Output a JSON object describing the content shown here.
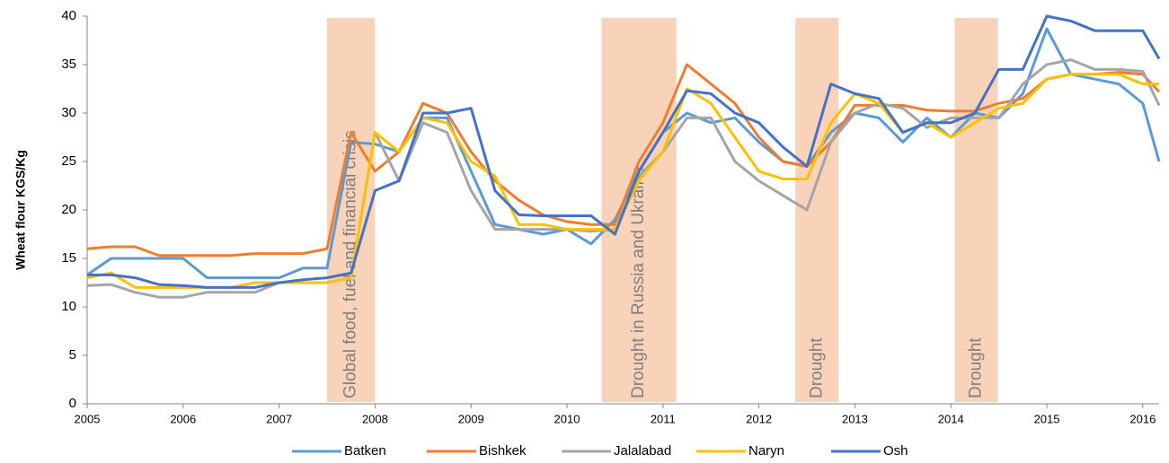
{
  "chart_data": {
    "type": "line",
    "y_label": "Wheat flour KGS/Kg",
    "x": [
      2005,
      2005.25,
      2005.5,
      2005.75,
      2006,
      2006.25,
      2006.5,
      2006.75,
      2007,
      2007.25,
      2007.5,
      2007.75,
      2008,
      2008.25,
      2008.5,
      2008.75,
      2009,
      2009.25,
      2009.5,
      2009.75,
      2010,
      2010.25,
      2010.5,
      2010.75,
      2011,
      2011.25,
      2011.5,
      2011.75,
      2012,
      2012.25,
      2012.5,
      2012.75,
      2013,
      2013.25,
      2013.5,
      2013.75,
      2014,
      2014.25,
      2014.5,
      2014.75,
      2015,
      2015.25,
      2015.5,
      2015.75,
      2016,
      2016.17
    ],
    "series": [
      {
        "name": "Batken",
        "color": "#5b9bd5",
        "values": [
          13.3,
          15,
          15,
          15,
          15,
          13,
          13,
          13,
          13,
          14,
          14,
          27,
          26.8,
          26,
          29.5,
          29.5,
          24,
          18.5,
          18,
          17.5,
          18,
          16.5,
          19,
          24,
          28,
          30,
          29,
          29.5,
          27,
          25,
          24.5,
          28,
          30,
          29.5,
          27,
          29.5,
          27.5,
          30,
          29.5,
          32,
          38.7,
          34,
          33.5,
          33,
          31,
          25
        ]
      },
      {
        "name": "Bishkek",
        "color": "#ed7d31",
        "values": [
          16,
          16.2,
          16.2,
          15.3,
          15.3,
          15.3,
          15.3,
          15.5,
          15.5,
          15.5,
          16,
          28,
          24,
          26,
          31,
          30,
          26,
          23,
          21,
          19.5,
          18.8,
          18.5,
          18.5,
          25,
          29,
          35,
          33,
          31,
          27.5,
          25,
          24.5,
          27,
          30.8,
          30.8,
          30.8,
          30.3,
          30.2,
          30.2,
          31,
          31.5,
          33.5,
          34,
          34,
          34.2,
          34,
          32.2
        ]
      },
      {
        "name": "Jalalabad",
        "color": "#a5a5a5",
        "values": [
          12.2,
          12.3,
          11.5,
          11,
          11,
          11.5,
          11.5,
          11.5,
          12.5,
          12.5,
          12.5,
          13,
          28,
          23,
          29,
          28,
          22,
          18,
          18,
          18,
          18,
          17.8,
          18,
          23.5,
          26,
          29.5,
          29.5,
          25,
          23,
          21.5,
          20,
          27,
          30,
          31,
          30.5,
          28.5,
          29.5,
          29.5,
          29.5,
          33,
          35,
          35.5,
          34.5,
          34.5,
          34.3,
          30.8
        ]
      },
      {
        "name": "Naryn",
        "color": "#ffc000",
        "values": [
          13,
          13.5,
          12,
          12,
          12,
          12,
          12,
          12.5,
          12.5,
          12.5,
          12.5,
          13,
          28,
          26,
          29.5,
          29,
          25,
          23.5,
          18.5,
          18.5,
          18,
          18,
          18,
          23,
          26,
          32.5,
          31,
          27.5,
          24,
          23.2,
          23.2,
          29,
          32,
          31,
          28,
          29,
          27.5,
          29,
          30.5,
          31,
          33.5,
          34,
          34,
          34,
          33,
          33
        ]
      },
      {
        "name": "Osh",
        "color": "#4472c4",
        "values": [
          13.3,
          13.3,
          13,
          12.3,
          12.2,
          12,
          12,
          12,
          12.5,
          12.8,
          13,
          13.5,
          22,
          23,
          30,
          30,
          30.5,
          22,
          19.5,
          19.4,
          19.4,
          19.4,
          17.5,
          24,
          28,
          32.3,
          32,
          30,
          29,
          26.5,
          24.5,
          33,
          32,
          31.5,
          28,
          29,
          29,
          30,
          34.5,
          34.5,
          40,
          39.5,
          38.5,
          38.5,
          38.5,
          35.6
        ]
      }
    ],
    "shaded_periods": [
      {
        "start": 2007.5,
        "end": 2008,
        "label": "Global food, fuel and financial crisis"
      },
      {
        "start": 2010.36,
        "end": 2011.14,
        "label": "Drought in Russia and Ukraine"
      },
      {
        "start": 2012.38,
        "end": 2012.83,
        "label": "Drought"
      },
      {
        "start": 2014.04,
        "end": 2014.49,
        "label": "Drought"
      }
    ],
    "shade_color": "#f8cbad",
    "xlim": [
      2005,
      2016.17
    ],
    "ylim": [
      0,
      40
    ],
    "xticks": [
      2005,
      2006,
      2007,
      2008,
      2009,
      2010,
      2011,
      2012,
      2013,
      2014,
      2015,
      2016
    ],
    "yticks": [
      0,
      5,
      10,
      15,
      20,
      25,
      30,
      35,
      40
    ],
    "legend": "bottom"
  }
}
